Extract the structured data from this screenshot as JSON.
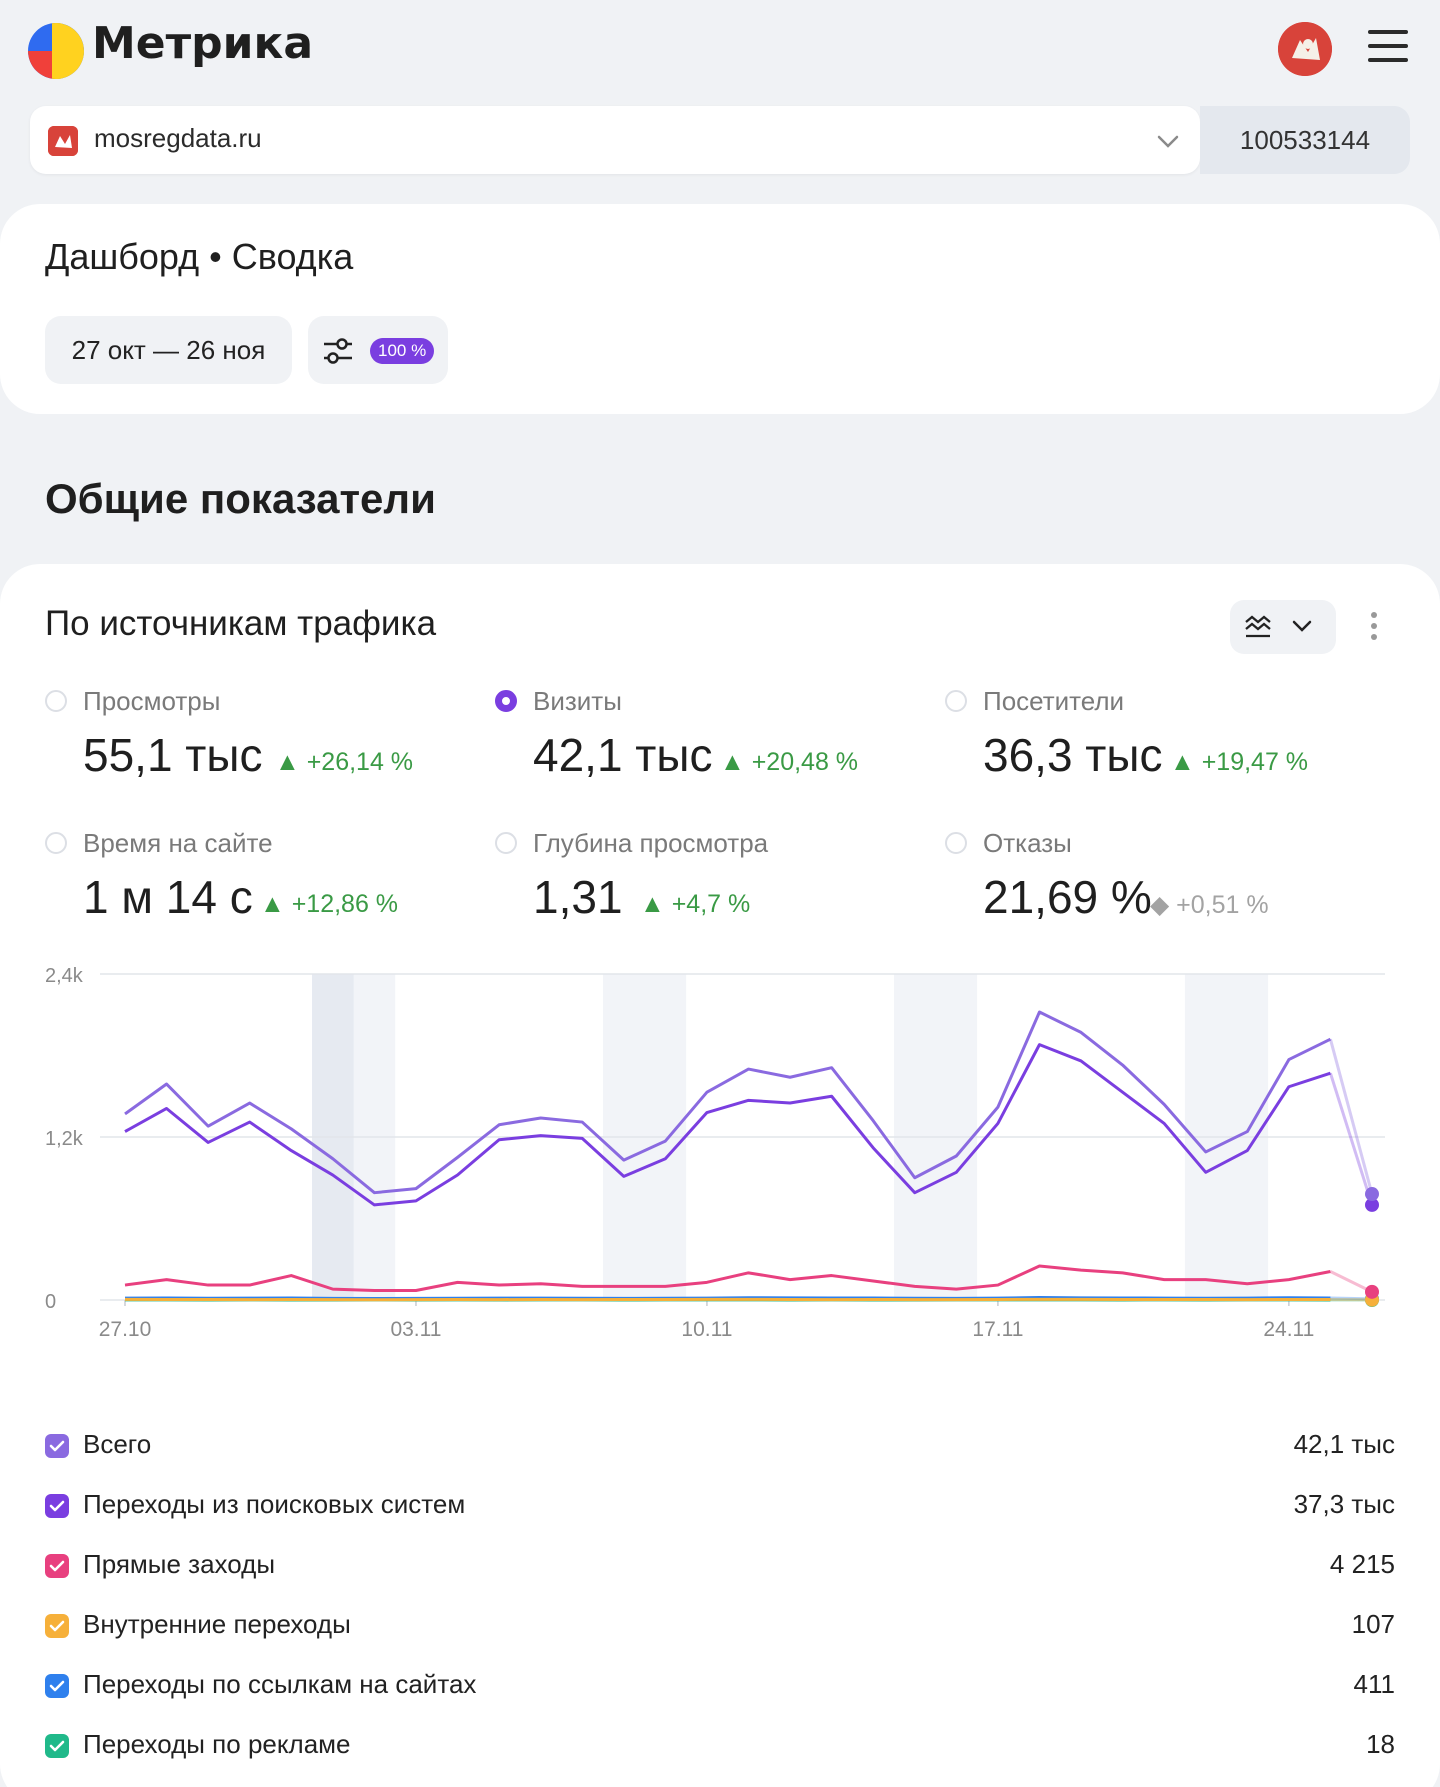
{
  "app": {
    "logo_text": "Метрика"
  },
  "site": {
    "name": "mosregdata.ru",
    "counter_id": "100533144"
  },
  "dashboard": {
    "title": "Дашборд • Сводка",
    "date_range": "27 окт — 26 ноя",
    "sampling": "100 %"
  },
  "section": {
    "title": "Общие показатели"
  },
  "traffic_card": {
    "title": "По источникам трафика",
    "metrics": [
      {
        "label": "Просмотры",
        "value": "55,1 тыс",
        "delta": "▲ +26,14 %",
        "selected": false,
        "trend": "up"
      },
      {
        "label": "Визиты",
        "value": "42,1 тыс",
        "delta": "▲ +20,48 %",
        "selected": true,
        "trend": "up"
      },
      {
        "label": "Посетители",
        "value": "36,3 тыс",
        "delta": "▲ +19,47 %",
        "selected": false,
        "trend": "up"
      },
      {
        "label": "Время на сайте",
        "value": "1 м 14 с",
        "delta": "▲ +12,86 %",
        "selected": false,
        "trend": "up"
      },
      {
        "label": "Глубина просмотра",
        "value": "1,31",
        "delta": "▲ +4,7 %",
        "selected": false,
        "trend": "up"
      },
      {
        "label": "Отказы",
        "value": "21,69 %",
        "delta": "◆ +0,51 %",
        "selected": false,
        "trend": "neutral"
      }
    ],
    "legend": [
      {
        "name": "Всего",
        "value": "42,1 тыс",
        "color": "#8a6ae0"
      },
      {
        "name": "Переходы из поисковых систем",
        "value": "37,3 тыс",
        "color": "#7a3ee0"
      },
      {
        "name": "Прямые заходы",
        "value": "4 215",
        "color": "#e8407f"
      },
      {
        "name": "Внутренние переходы",
        "value": "107",
        "color": "#f6b03a"
      },
      {
        "name": "Переходы по ссылкам на сайтах",
        "value": "411",
        "color": "#2f80ed"
      },
      {
        "name": "Переходы по рекламе",
        "value": "18",
        "color": "#20b98a"
      }
    ]
  },
  "chart_data": {
    "type": "line",
    "x": [
      "27.10",
      "28.10",
      "29.10",
      "30.10",
      "31.10",
      "01.11",
      "02.11",
      "03.11",
      "04.11",
      "05.11",
      "06.11",
      "07.11",
      "08.11",
      "09.11",
      "10.11",
      "11.11",
      "12.11",
      "13.11",
      "14.11",
      "15.11",
      "16.11",
      "17.11",
      "18.11",
      "19.11",
      "20.11",
      "21.11",
      "22.11",
      "23.11",
      "24.11",
      "25.11",
      "26.11"
    ],
    "x_tick_labels": [
      "27.10",
      "03.11",
      "10.11",
      "17.11",
      "24.11"
    ],
    "y_tick_labels": [
      "0",
      "1,2k",
      "2,4k"
    ],
    "ylim": [
      0,
      2400
    ],
    "grid": true,
    "series": [
      {
        "name": "Всего",
        "color": "#8a6ae0",
        "values": [
          1370,
          1590,
          1280,
          1450,
          1260,
          1040,
          790,
          820,
          1050,
          1290,
          1340,
          1310,
          1030,
          1170,
          1530,
          1700,
          1640,
          1710,
          1320,
          900,
          1060,
          1420,
          2120,
          1970,
          1730,
          1440,
          1090,
          1240,
          1770,
          1920,
          780
        ]
      },
      {
        "name": "Переходы из поисковых систем",
        "color": "#7a3ee0",
        "values": [
          1240,
          1410,
          1160,
          1310,
          1100,
          920,
          700,
          730,
          920,
          1180,
          1210,
          1190,
          910,
          1040,
          1380,
          1470,
          1450,
          1500,
          1120,
          790,
          940,
          1300,
          1880,
          1760,
          1530,
          1300,
          940,
          1100,
          1570,
          1670,
          700
        ]
      },
      {
        "name": "Прямые заходы",
        "color": "#e8407f",
        "values": [
          110,
          150,
          110,
          110,
          180,
          80,
          70,
          70,
          130,
          110,
          120,
          100,
          100,
          100,
          130,
          200,
          150,
          180,
          140,
          100,
          80,
          110,
          250,
          220,
          200,
          150,
          150,
          120,
          150,
          210,
          60
        ]
      },
      {
        "name": "Внутренние переходы",
        "color": "#f6b03a",
        "values": [
          5,
          4,
          4,
          3,
          4,
          3,
          2,
          3,
          4,
          3,
          4,
          3,
          4,
          4,
          5,
          5,
          4,
          3,
          4,
          3,
          3,
          4,
          5,
          5,
          4,
          4,
          4,
          3,
          4,
          4,
          2
        ]
      },
      {
        "name": "Переходы по ссылкам на сайтах",
        "color": "#2f80ed",
        "values": [
          14,
          15,
          13,
          14,
          15,
          12,
          11,
          12,
          13,
          14,
          14,
          13,
          12,
          13,
          14,
          17,
          16,
          15,
          15,
          13,
          12,
          14,
          18,
          16,
          15,
          14,
          13,
          14,
          17,
          15,
          8
        ]
      },
      {
        "name": "Переходы по рекламе",
        "color": "#20b98a",
        "values": [
          1,
          1,
          0,
          1,
          0,
          0,
          1,
          0,
          1,
          0,
          1,
          1,
          0,
          1,
          1,
          1,
          0,
          1,
          0,
          0,
          1,
          1,
          1,
          1,
          0,
          1,
          0,
          1,
          1,
          0,
          0
        ]
      }
    ],
    "weekends": [
      [
        5,
        6
      ],
      [
        12,
        13
      ],
      [
        19,
        20
      ],
      [
        26,
        27
      ]
    ],
    "highlighted_weekend_days": [
      5
    ]
  }
}
